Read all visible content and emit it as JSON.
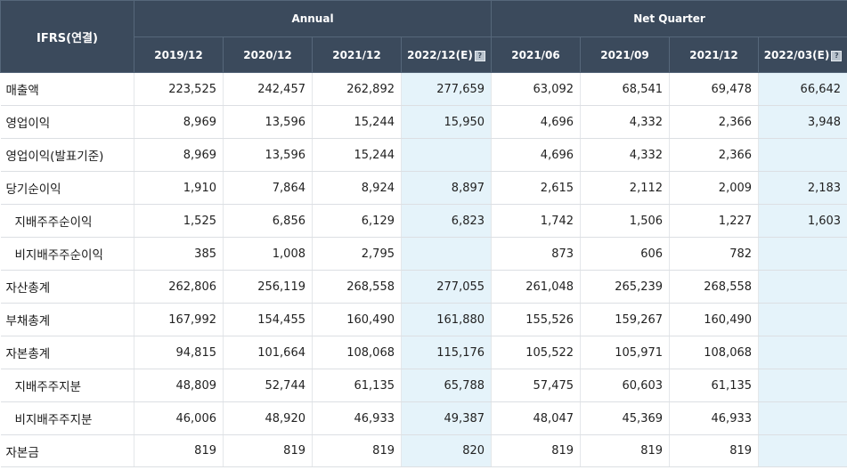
{
  "table": {
    "corner_label": "IFRS(연결)",
    "groups": [
      {
        "label": "Annual"
      },
      {
        "label": "Net Quarter"
      }
    ],
    "periods": [
      {
        "label": "2019/12",
        "estimate": false
      },
      {
        "label": "2020/12",
        "estimate": false
      },
      {
        "label": "2021/12",
        "estimate": false
      },
      {
        "label": "2022/12(E)",
        "estimate": true
      },
      {
        "label": "2021/06",
        "estimate": false
      },
      {
        "label": "2021/09",
        "estimate": false
      },
      {
        "label": "2021/12",
        "estimate": false
      },
      {
        "label": "2022/03(E)",
        "estimate": true
      }
    ],
    "estimate_icon": "help-icon",
    "estimate_bg": "#e5f3fa",
    "header_bg": "#3b4a5c",
    "rows": [
      {
        "label": "매출액",
        "sub": false,
        "values": [
          "223,525",
          "242,457",
          "262,892",
          "277,659",
          "63,092",
          "68,541",
          "69,478",
          "66,642"
        ]
      },
      {
        "label": "영업이익",
        "sub": false,
        "values": [
          "8,969",
          "13,596",
          "15,244",
          "15,950",
          "4,696",
          "4,332",
          "2,366",
          "3,948"
        ]
      },
      {
        "label": "영업이익(발표기준)",
        "sub": false,
        "values": [
          "8,969",
          "13,596",
          "15,244",
          "",
          "4,696",
          "4,332",
          "2,366",
          ""
        ]
      },
      {
        "label": "당기순이익",
        "sub": false,
        "values": [
          "1,910",
          "7,864",
          "8,924",
          "8,897",
          "2,615",
          "2,112",
          "2,009",
          "2,183"
        ]
      },
      {
        "label": "지배주주순이익",
        "sub": true,
        "values": [
          "1,525",
          "6,856",
          "6,129",
          "6,823",
          "1,742",
          "1,506",
          "1,227",
          "1,603"
        ]
      },
      {
        "label": "비지배주주순이익",
        "sub": true,
        "values": [
          "385",
          "1,008",
          "2,795",
          "",
          "873",
          "606",
          "782",
          ""
        ]
      },
      {
        "label": "자산총계",
        "sub": false,
        "values": [
          "262,806",
          "256,119",
          "268,558",
          "277,055",
          "261,048",
          "265,239",
          "268,558",
          ""
        ]
      },
      {
        "label": "부채총계",
        "sub": false,
        "values": [
          "167,992",
          "154,455",
          "160,490",
          "161,880",
          "155,526",
          "159,267",
          "160,490",
          ""
        ]
      },
      {
        "label": "자본총계",
        "sub": false,
        "values": [
          "94,815",
          "101,664",
          "108,068",
          "115,176",
          "105,522",
          "105,971",
          "108,068",
          ""
        ]
      },
      {
        "label": "지배주주지분",
        "sub": true,
        "values": [
          "48,809",
          "52,744",
          "61,135",
          "65,788",
          "57,475",
          "60,603",
          "61,135",
          ""
        ]
      },
      {
        "label": "비지배주주지분",
        "sub": true,
        "values": [
          "46,006",
          "48,920",
          "46,933",
          "49,387",
          "48,047",
          "45,369",
          "46,933",
          ""
        ]
      },
      {
        "label": "자본금",
        "sub": false,
        "values": [
          "819",
          "819",
          "819",
          "820",
          "819",
          "819",
          "819",
          ""
        ]
      }
    ]
  }
}
